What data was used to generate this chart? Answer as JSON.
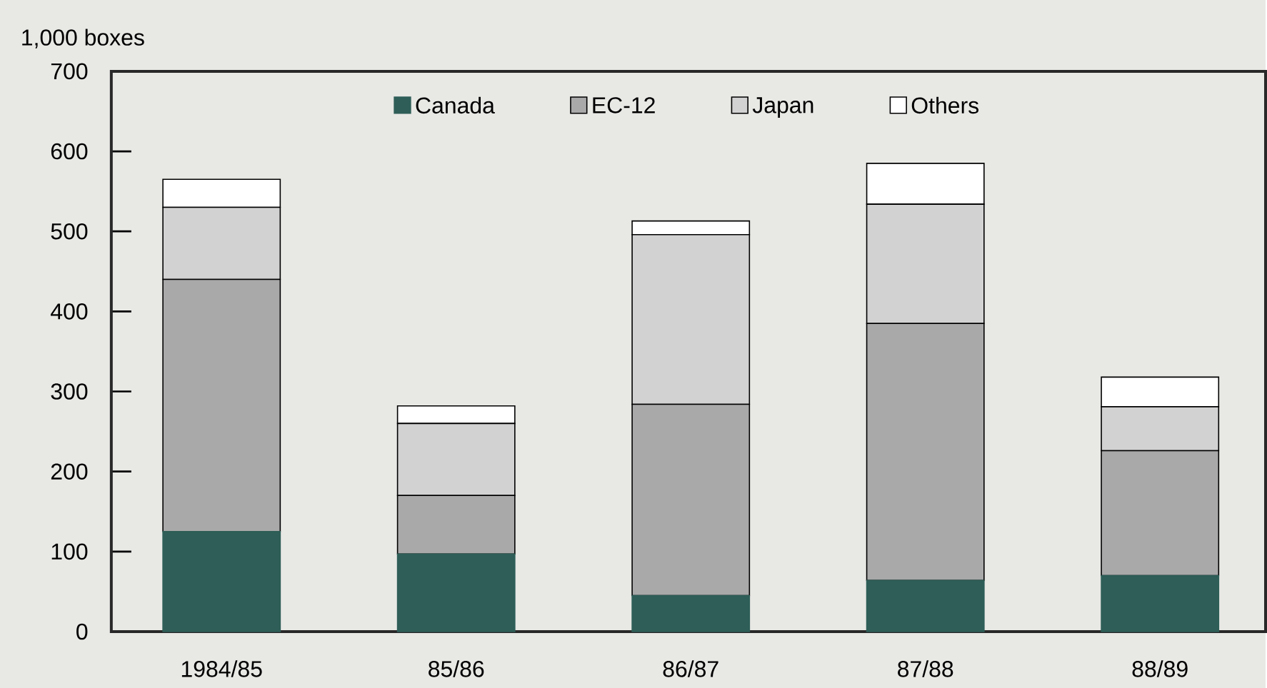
{
  "chart_data": {
    "type": "bar",
    "stacked": true,
    "ylabel": "1,000 boxes",
    "categories": [
      "1984/85",
      "85/86",
      "86/87",
      "87/88",
      "88/89"
    ],
    "series": [
      {
        "name": "Canada",
        "color": "#2e5e57",
        "values": [
          125,
          97,
          45,
          64,
          70
        ]
      },
      {
        "name": "EC-12",
        "color": "#a9a9a9",
        "values": [
          315,
          73,
          239,
          321,
          156
        ]
      },
      {
        "name": "Japan",
        "color": "#d2d2d2",
        "values": [
          90,
          90,
          212,
          149,
          55
        ]
      },
      {
        "name": "Others",
        "color": "#ffffff",
        "values": [
          35,
          22,
          17,
          51,
          37
        ]
      }
    ],
    "ylim": [
      0,
      700
    ],
    "yticks": [
      0,
      100,
      200,
      300,
      400,
      500,
      600,
      700
    ],
    "legend": "top"
  }
}
